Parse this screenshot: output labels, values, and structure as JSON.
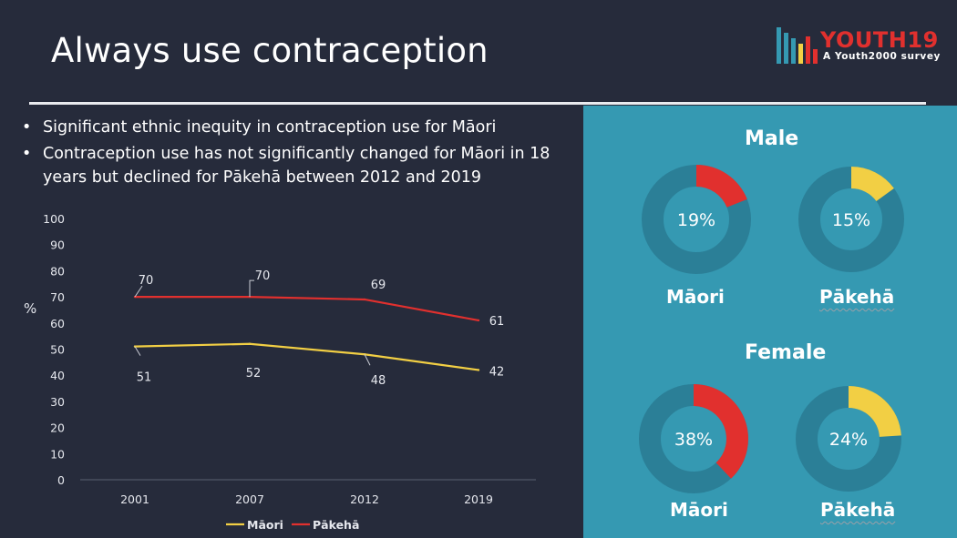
{
  "title": "Always use contraception",
  "logo": {
    "brand": "YOUTH19",
    "tagline": "A Youth2000 survey",
    "bar_colors": [
      "#3599b2",
      "#3599b2",
      "#3599b2",
      "#f2cf44",
      "#e1302e",
      "#e1302e"
    ]
  },
  "bullets": [
    "Significant ethnic inequity in contraception use for Māori",
    "Contraception use has not significantly changed for Māori in 18 years but declined for Pākehā between 2012 and 2019"
  ],
  "chart_data": [
    {
      "type": "line",
      "title": "",
      "xlabel": "",
      "ylabel": "%",
      "ylim": [
        0,
        100
      ],
      "yticks": [
        0,
        10,
        20,
        30,
        40,
        50,
        60,
        70,
        80,
        90,
        100
      ],
      "categories": [
        "2001",
        "2007",
        "2012",
        "2019"
      ],
      "series": [
        {
          "name": "Māori",
          "color": "#f2cf44",
          "values": [
            51,
            52,
            48,
            42
          ],
          "labels": [
            "51",
            "52",
            "48",
            "42"
          ]
        },
        {
          "name": "Pākehā",
          "color": "#e1302e",
          "values": [
            70,
            70,
            69,
            61
          ],
          "labels": [
            "70",
            "70",
            "69",
            "61"
          ]
        }
      ],
      "legend": "bottom"
    },
    {
      "type": "pie",
      "title": "Male",
      "groups": [
        {
          "name": "Māori",
          "value": 19,
          "label": "19%",
          "color": "#e1302e"
        },
        {
          "name": "Pākehā",
          "value": 15,
          "label": "15%",
          "color": "#f2cf44"
        }
      ]
    },
    {
      "type": "pie",
      "title": "Female",
      "groups": [
        {
          "name": "Māori",
          "value": 38,
          "label": "38%",
          "color": "#e1302e"
        },
        {
          "name": "Pākehā",
          "value": 24,
          "label": "24%",
          "color": "#f2cf44"
        }
      ]
    }
  ],
  "colors": {
    "background": "#262b3b",
    "panel": "#3599b2",
    "ring": "#2b7f97",
    "axis": "#5b6070",
    "text": "#ffffff"
  }
}
